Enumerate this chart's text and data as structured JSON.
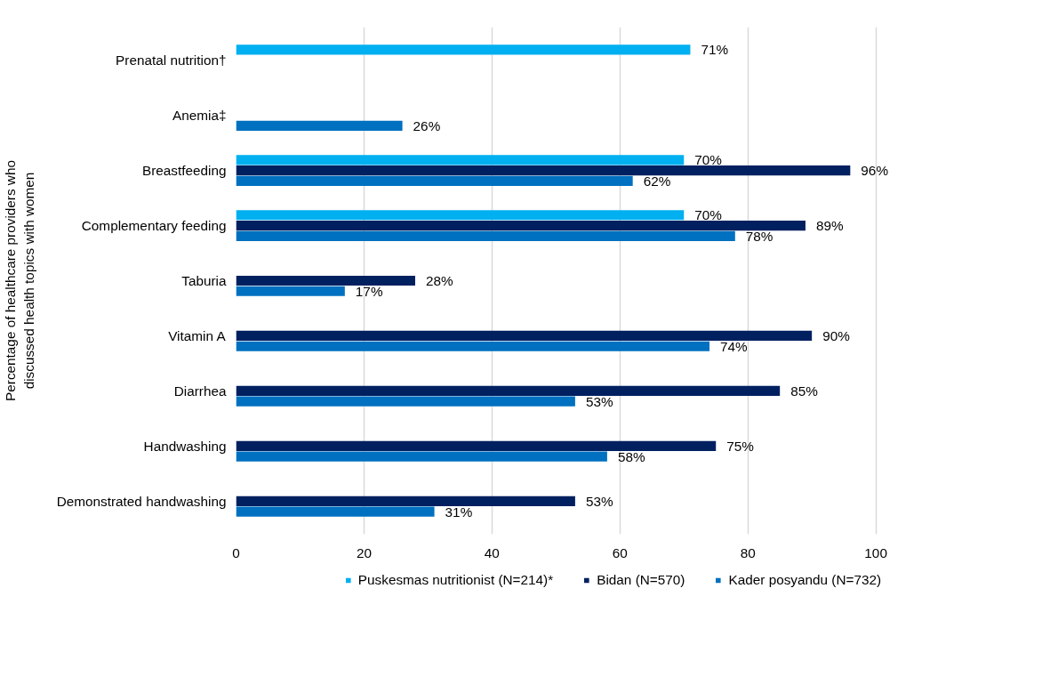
{
  "chart_data": {
    "type": "bar",
    "orientation": "horizontal",
    "ylabel": "Percentage of healthcare providers who discussed health topics with women",
    "categories": [
      "Prenatal nutrition†",
      "Anemia‡",
      "Breastfeeding",
      "Complementary feeding",
      "Taburia",
      "Vitamin A",
      "Diarrhea",
      "Handwashing",
      "Demonstrated handwashing"
    ],
    "series": [
      {
        "name": "Puskesmas nutritionist (N=214)*",
        "color": "#00b0f0",
        "values": [
          71,
          null,
          70,
          70,
          null,
          null,
          null,
          null,
          null
        ],
        "value_labels": [
          "71%",
          null,
          "70%",
          "70%",
          null,
          null,
          null,
          null,
          null
        ]
      },
      {
        "name": "Bidan (N=570)",
        "color": "#002060",
        "values": [
          null,
          null,
          96,
          89,
          28,
          90,
          85,
          75,
          53
        ],
        "value_labels": [
          null,
          null,
          "96%",
          "89%",
          "28%",
          "90%",
          "85%",
          "75%",
          "53%"
        ]
      },
      {
        "name": "Kader posyandu (N=732)",
        "color": "#0070c0",
        "values": [
          null,
          26,
          62,
          78,
          17,
          74,
          53,
          58,
          31
        ],
        "value_labels": [
          null,
          "26%",
          "62%",
          "78%",
          "17%",
          "74%",
          "53%",
          "58%",
          "31%"
        ]
      }
    ],
    "xlim": [
      0,
      100
    ],
    "xticks": [
      0,
      20,
      40,
      60,
      80,
      100
    ],
    "grid": "x",
    "legend": "bottom"
  }
}
